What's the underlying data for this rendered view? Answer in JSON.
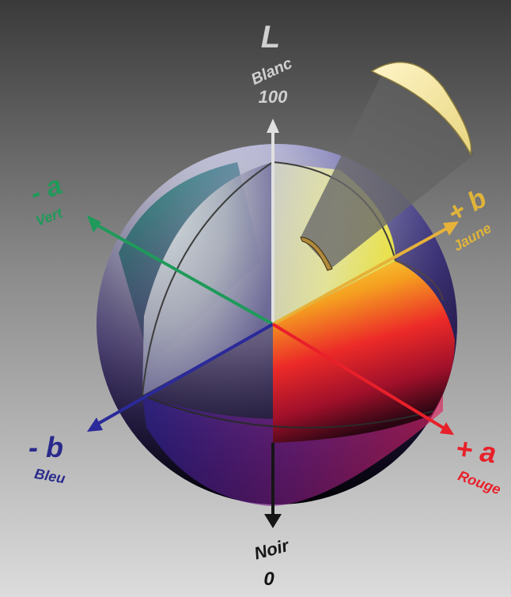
{
  "axes": {
    "l_plus": {
      "symbol": "L",
      "name": "Blanc",
      "value": "100",
      "color": "#d6d6d6"
    },
    "l_minus": {
      "name": "Noir",
      "value": "0",
      "color": "#1a1a1a"
    },
    "a_minus": {
      "symbol": "- a",
      "name": "Vert",
      "color": "#1f9a5a"
    },
    "a_plus": {
      "symbol": "+ a",
      "name": "Rouge",
      "color": "#e8202a"
    },
    "b_minus": {
      "symbol": "- b",
      "name": "Bleu",
      "color": "#2a2a8c"
    },
    "b_plus": {
      "symbol": "+ b",
      "name": "Jaune",
      "color": "#e0b43a"
    }
  },
  "colors": {
    "background_top": "#3d3d3d",
    "background_bottom": "#d9d9d9",
    "sphere_blue": "#3a3aa8",
    "sphere_green": "#1a8a6a",
    "sphere_red": "#e21d2a",
    "sphere_yellow": "#f0e640",
    "sphere_black": "#0a0a0a",
    "slice_yellow": "#f3e6a0"
  }
}
